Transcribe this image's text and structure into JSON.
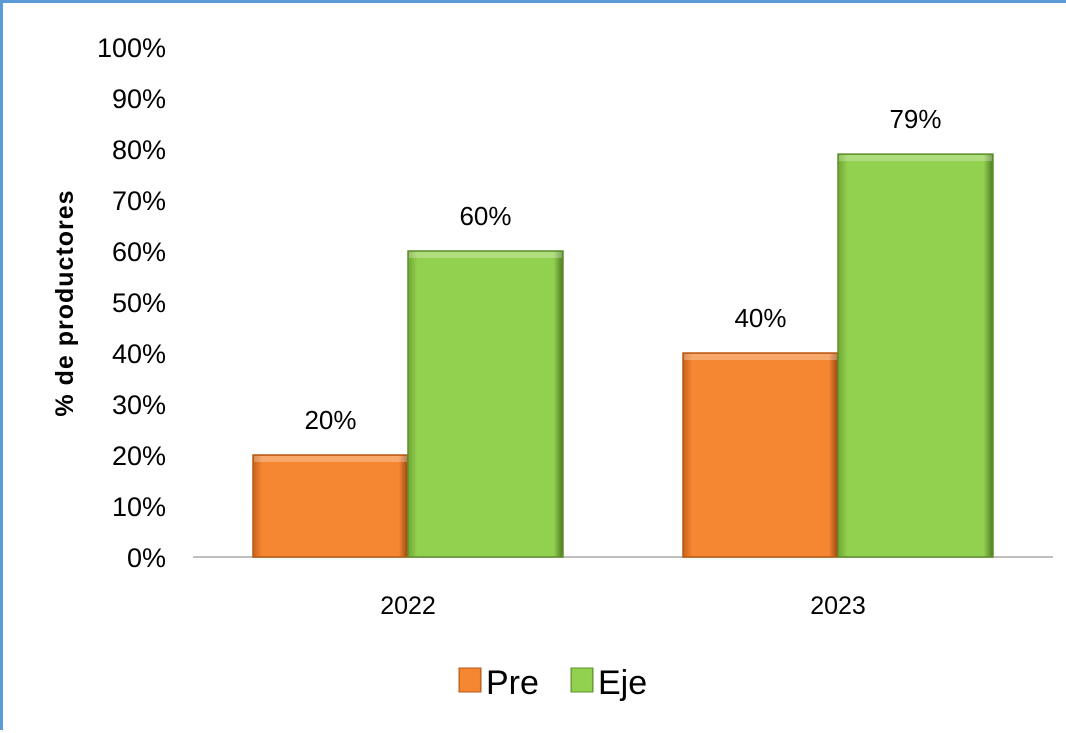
{
  "chart_data": {
    "type": "bar",
    "categories": [
      "2022",
      "2023"
    ],
    "series": [
      {
        "name": "Pre",
        "values": [
          20,
          40
        ],
        "labels": [
          "20%",
          "40%"
        ],
        "color": "#f58733"
      },
      {
        "name": "Eje",
        "values": [
          60,
          79
        ],
        "labels": [
          "60%",
          "79%"
        ],
        "color": "#92d050"
      }
    ],
    "ylabel": "% de productores",
    "xlabel": "",
    "ylim": [
      0,
      100
    ],
    "yticks": [
      "0%",
      "10%",
      "20%",
      "30%",
      "40%",
      "50%",
      "60%",
      "70%",
      "80%",
      "90%",
      "100%"
    ],
    "grid": false,
    "legend_position": "bottom"
  }
}
